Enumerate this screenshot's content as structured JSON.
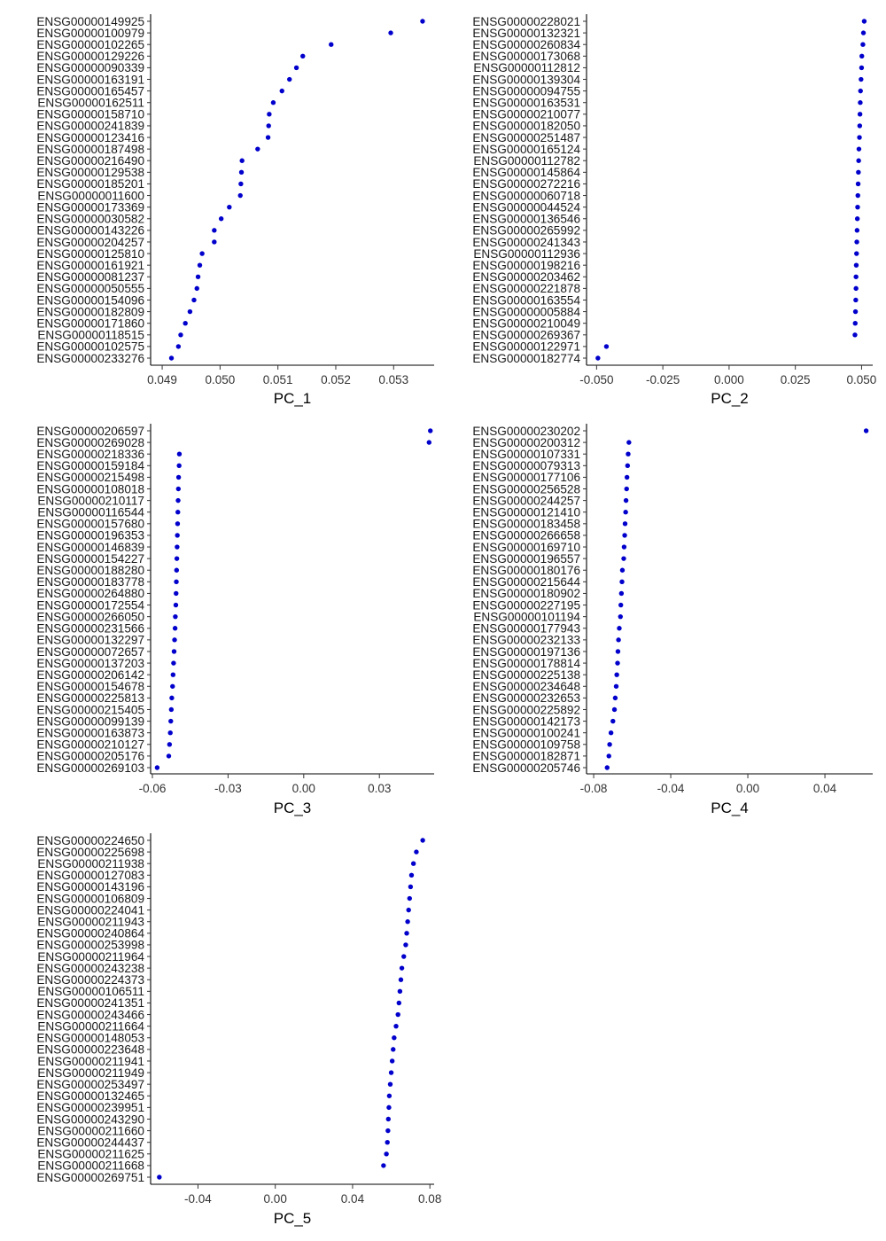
{
  "colors": {
    "point": "#0000cc",
    "axis": "#000000",
    "text": "#1a1a1a"
  },
  "chart_data": [
    {
      "type": "scatter",
      "xlabel": "PC_1",
      "xlim": [
        0.0488,
        0.0537
      ],
      "xticks": [
        0.049,
        0.05,
        0.051,
        0.052,
        0.053
      ],
      "xtick_labels": [
        "0.049",
        "0.050",
        "0.051",
        "0.052",
        "0.053"
      ],
      "genes": [
        "ENSG00000149925",
        "ENSG00000100979",
        "ENSG00000102265",
        "ENSG00000129226",
        "ENSG00000090339",
        "ENSG00000163191",
        "ENSG00000165457",
        "ENSG00000162511",
        "ENSG00000158710",
        "ENSG00000241839",
        "ENSG00000123416",
        "ENSG00000187498",
        "ENSG00000216490",
        "ENSG00000129538",
        "ENSG00000185201",
        "ENSG00000011600",
        "ENSG00000173369",
        "ENSG00000030582",
        "ENSG00000143226",
        "ENSG00000204257",
        "ENSG00000125810",
        "ENSG00000161921",
        "ENSG00000081237",
        "ENSG00000050555",
        "ENSG00000154096",
        "ENSG00000182809",
        "ENSG00000171860",
        "ENSG00000118515",
        "ENSG00000102575",
        "ENSG00000233276"
      ],
      "values": [
        0.0535,
        0.05295,
        0.05192,
        0.05143,
        0.05132,
        0.0512,
        0.05107,
        0.05092,
        0.05085,
        0.05084,
        0.05083,
        0.05065,
        0.05038,
        0.05037,
        0.05036,
        0.05035,
        0.05016,
        0.05002,
        0.0499,
        0.0499,
        0.04969,
        0.04965,
        0.04962,
        0.0496,
        0.04955,
        0.04948,
        0.0494,
        0.04932,
        0.04928,
        0.04916
      ]
    },
    {
      "type": "scatter",
      "xlabel": "PC_2",
      "xlim": [
        -0.0538,
        0.0542
      ],
      "xticks": [
        -0.05,
        -0.025,
        0.0,
        0.025,
        0.05
      ],
      "xtick_labels": [
        "-0.050",
        "-0.025",
        "0.000",
        "0.025",
        "0.050"
      ],
      "genes": [
        "ENSG00000228021",
        "ENSG00000132321",
        "ENSG00000260834",
        "ENSG00000173068",
        "ENSG00000112812",
        "ENSG00000139304",
        "ENSG00000094755",
        "ENSG00000163531",
        "ENSG00000210077",
        "ENSG00000182050",
        "ENSG00000251487",
        "ENSG00000165124",
        "ENSG00000112782",
        "ENSG00000145864",
        "ENSG00000272216",
        "ENSG00000060718",
        "ENSG00000044524",
        "ENSG00000136546",
        "ENSG00000265992",
        "ENSG00000241343",
        "ENSG00000112936",
        "ENSG00000198216",
        "ENSG00000203462",
        "ENSG00000221878",
        "ENSG00000163554",
        "ENSG00000005884",
        "ENSG00000210049",
        "ENSG00000269367",
        "ENSG00000122971",
        "ENSG00000182774"
      ],
      "values": [
        0.051,
        0.0507,
        0.0505,
        0.0501,
        0.05,
        0.0498,
        0.0496,
        0.0495,
        0.0494,
        0.0493,
        0.0492,
        0.049,
        0.0489,
        0.0488,
        0.0487,
        0.0486,
        0.0485,
        0.0484,
        0.0483,
        0.0482,
        0.0481,
        0.048,
        0.0479,
        0.0479,
        0.0478,
        0.0477,
        0.0476,
        0.0475,
        -0.0463,
        -0.0495
      ]
    },
    {
      "type": "scatter",
      "xlabel": "PC_3",
      "xlim": [
        -0.0607,
        0.0517
      ],
      "xticks": [
        -0.06,
        -0.03,
        0.0,
        0.03
      ],
      "xtick_labels": [
        "-0.06",
        "-0.03",
        "0.00",
        "0.03"
      ],
      "genes": [
        "ENSG00000206597",
        "ENSG00000269028",
        "ENSG00000218336",
        "ENSG00000159184",
        "ENSG00000215498",
        "ENSG00000108018",
        "ENSG00000210117",
        "ENSG00000116544",
        "ENSG00000157680",
        "ENSG00000196353",
        "ENSG00000146839",
        "ENSG00000154227",
        "ENSG00000188280",
        "ENSG00000183778",
        "ENSG00000264880",
        "ENSG00000172554",
        "ENSG00000266050",
        "ENSG00000231566",
        "ENSG00000132297",
        "ENSG00000072657",
        "ENSG00000137203",
        "ENSG00000206142",
        "ENSG00000154678",
        "ENSG00000225813",
        "ENSG00000215405",
        "ENSG00000099139",
        "ENSG00000163873",
        "ENSG00000210127",
        "ENSG00000205176",
        "ENSG00000269103"
      ],
      "values": [
        0.0502,
        0.0497,
        -0.0493,
        -0.0494,
        -0.0496,
        -0.0497,
        -0.0498,
        -0.0499,
        -0.05,
        -0.0501,
        -0.0502,
        -0.0503,
        -0.0504,
        -0.0505,
        -0.0506,
        -0.0507,
        -0.0509,
        -0.051,
        -0.0512,
        -0.0514,
        -0.0516,
        -0.0518,
        -0.052,
        -0.0523,
        -0.0525,
        -0.0527,
        -0.0529,
        -0.0532,
        -0.0535,
        -0.0581
      ]
    },
    {
      "type": "scatter",
      "xlabel": "PC_4",
      "xlim": [
        -0.0837,
        0.0648
      ],
      "xticks": [
        -0.08,
        -0.04,
        0.0,
        0.04
      ],
      "xtick_labels": [
        "-0.08",
        "-0.04",
        "0.00",
        "0.04"
      ],
      "genes": [
        "ENSG00000230202",
        "ENSG00000200312",
        "ENSG00000107331",
        "ENSG00000079313",
        "ENSG00000177106",
        "ENSG00000256528",
        "ENSG00000244257",
        "ENSG00000121410",
        "ENSG00000183458",
        "ENSG00000266658",
        "ENSG00000169710",
        "ENSG00000196557",
        "ENSG00000180176",
        "ENSG00000215644",
        "ENSG00000180902",
        "ENSG00000227195",
        "ENSG00000101194",
        "ENSG00000177943",
        "ENSG00000232133",
        "ENSG00000197136",
        "ENSG00000178814",
        "ENSG00000225138",
        "ENSG00000234648",
        "ENSG00000232653",
        "ENSG00000225892",
        "ENSG00000142173",
        "ENSG00000100241",
        "ENSG00000109758",
        "ENSG00000182871",
        "ENSG00000205746"
      ],
      "values": [
        0.0614,
        -0.0617,
        -0.0621,
        -0.0624,
        -0.0627,
        -0.0629,
        -0.0632,
        -0.0634,
        -0.0637,
        -0.0639,
        -0.0642,
        -0.0644,
        -0.0651,
        -0.0653,
        -0.0656,
        -0.0659,
        -0.0661,
        -0.0667,
        -0.0671,
        -0.0674,
        -0.0676,
        -0.068,
        -0.0683,
        -0.0688,
        -0.0692,
        -0.07,
        -0.071,
        -0.0717,
        -0.0721,
        -0.073
      ]
    },
    {
      "type": "scatter",
      "xlabel": "PC_5",
      "xlim": [
        -0.0645,
        0.0822
      ],
      "xticks": [
        -0.04,
        0.0,
        0.04,
        0.08
      ],
      "xtick_labels": [
        "-0.04",
        "0.00",
        "0.04",
        "0.08"
      ],
      "genes": [
        "ENSG00000224650",
        "ENSG00000225698",
        "ENSG00000211938",
        "ENSG00000127083",
        "ENSG00000143196",
        "ENSG00000106809",
        "ENSG00000224041",
        "ENSG00000211943",
        "ENSG00000240864",
        "ENSG00000253998",
        "ENSG00000211964",
        "ENSG00000243238",
        "ENSG00000224373",
        "ENSG00000106511",
        "ENSG00000241351",
        "ENSG00000243466",
        "ENSG00000211664",
        "ENSG00000148053",
        "ENSG00000223648",
        "ENSG00000211941",
        "ENSG00000211949",
        "ENSG00000253497",
        "ENSG00000132465",
        "ENSG00000239951",
        "ENSG00000243290",
        "ENSG00000211660",
        "ENSG00000244437",
        "ENSG00000211625",
        "ENSG00000211668",
        "ENSG00000269751"
      ],
      "values": [
        0.0763,
        0.073,
        0.0715,
        0.0705,
        0.07,
        0.0695,
        0.069,
        0.0685,
        0.068,
        0.0675,
        0.0665,
        0.0655,
        0.065,
        0.0645,
        0.064,
        0.0635,
        0.0625,
        0.0615,
        0.061,
        0.0605,
        0.06,
        0.0595,
        0.059,
        0.0588,
        0.0585,
        0.0583,
        0.058,
        0.0575,
        0.056,
        -0.06
      ]
    }
  ]
}
